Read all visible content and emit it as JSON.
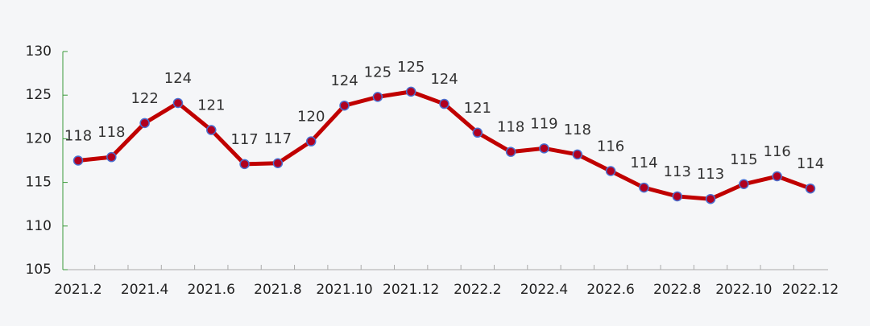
{
  "chart_data": {
    "type": "line",
    "categories": [
      "2021.2",
      null,
      "2021.4",
      null,
      "2021.6",
      null,
      "2021.8",
      null,
      "2021.10",
      null,
      "2021.12",
      null,
      "2022.2",
      null,
      "2022.4",
      null,
      "2022.6",
      null,
      "2022.8",
      null,
      "2022.10",
      null,
      "2022.12"
    ],
    "values": [
      117.5,
      117.9,
      121.8,
      124.1,
      121.0,
      117.1,
      117.2,
      119.7,
      123.8,
      124.8,
      125.4,
      124.0,
      120.7,
      118.5,
      118.9,
      118.2,
      116.3,
      114.4,
      113.4,
      113.1,
      114.8,
      115.7,
      114.3
    ],
    "value_labels": [
      "118",
      "118",
      "122",
      "124",
      "121",
      "117",
      "117",
      "120",
      "124",
      "125",
      "125",
      "124",
      "121",
      "118",
      "119",
      "118",
      "116",
      "114",
      "113",
      "113",
      "115",
      "116",
      "114"
    ],
    "color": "#c00000",
    "marker_color": "#b00020",
    "marker_edge": "#4a6fd0",
    "ylim": [
      105,
      130
    ],
    "yticks": [
      105,
      110,
      115,
      120,
      125,
      130
    ],
    "grid": false
  }
}
